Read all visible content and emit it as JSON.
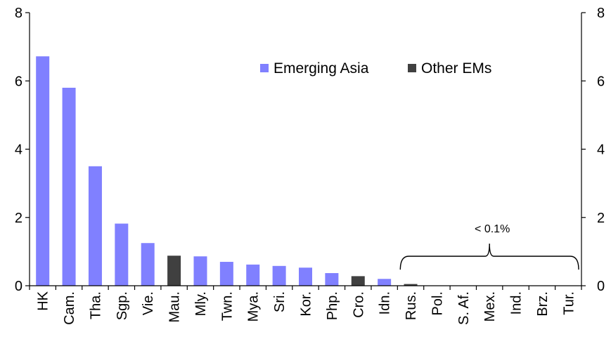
{
  "chart_data": {
    "type": "bar",
    "title": "",
    "xlabel": "",
    "ylabel": "",
    "ylim": [
      0,
      8
    ],
    "yticks": [
      "0",
      "2",
      "4",
      "6",
      "8"
    ],
    "secondary_axis": true,
    "grid": false,
    "legend_position": "top-right",
    "colors": {
      "Emerging Asia": "#8080ff",
      "Other EMs": "#404040"
    },
    "series": [
      {
        "name": "Emerging Asia"
      },
      {
        "name": "Other EMs"
      }
    ],
    "categories": [
      "HK",
      "Cam.",
      "Tha.",
      "Sgp.",
      "Vie.",
      "Mau.",
      "Mly.",
      "Twn.",
      "Mya.",
      "Sri.",
      "Kor.",
      "Php.",
      "Cro.",
      "Idn.",
      "Rus.",
      "Pol.",
      "S. Af.",
      "Mex.",
      "Ind.",
      "Brz.",
      "Tur."
    ],
    "values": [
      6.72,
      5.8,
      3.5,
      1.82,
      1.25,
      0.88,
      0.86,
      0.7,
      0.62,
      0.58,
      0.53,
      0.37,
      0.28,
      0.2,
      0.05,
      0.0,
      0.0,
      0.0,
      0.0,
      0.0,
      0.0
    ],
    "groups": [
      "Emerging Asia",
      "Emerging Asia",
      "Emerging Asia",
      "Emerging Asia",
      "Emerging Asia",
      "Other EMs",
      "Emerging Asia",
      "Emerging Asia",
      "Emerging Asia",
      "Emerging Asia",
      "Emerging Asia",
      "Emerging Asia",
      "Other EMs",
      "Emerging Asia",
      "Other EMs",
      "Other EMs",
      "Other EMs",
      "Other EMs",
      "Other EMs",
      "Other EMs",
      "Other EMs"
    ],
    "annotations": [
      {
        "text": "< 0.1%",
        "from": "Rus.",
        "to": "Tur."
      }
    ]
  }
}
